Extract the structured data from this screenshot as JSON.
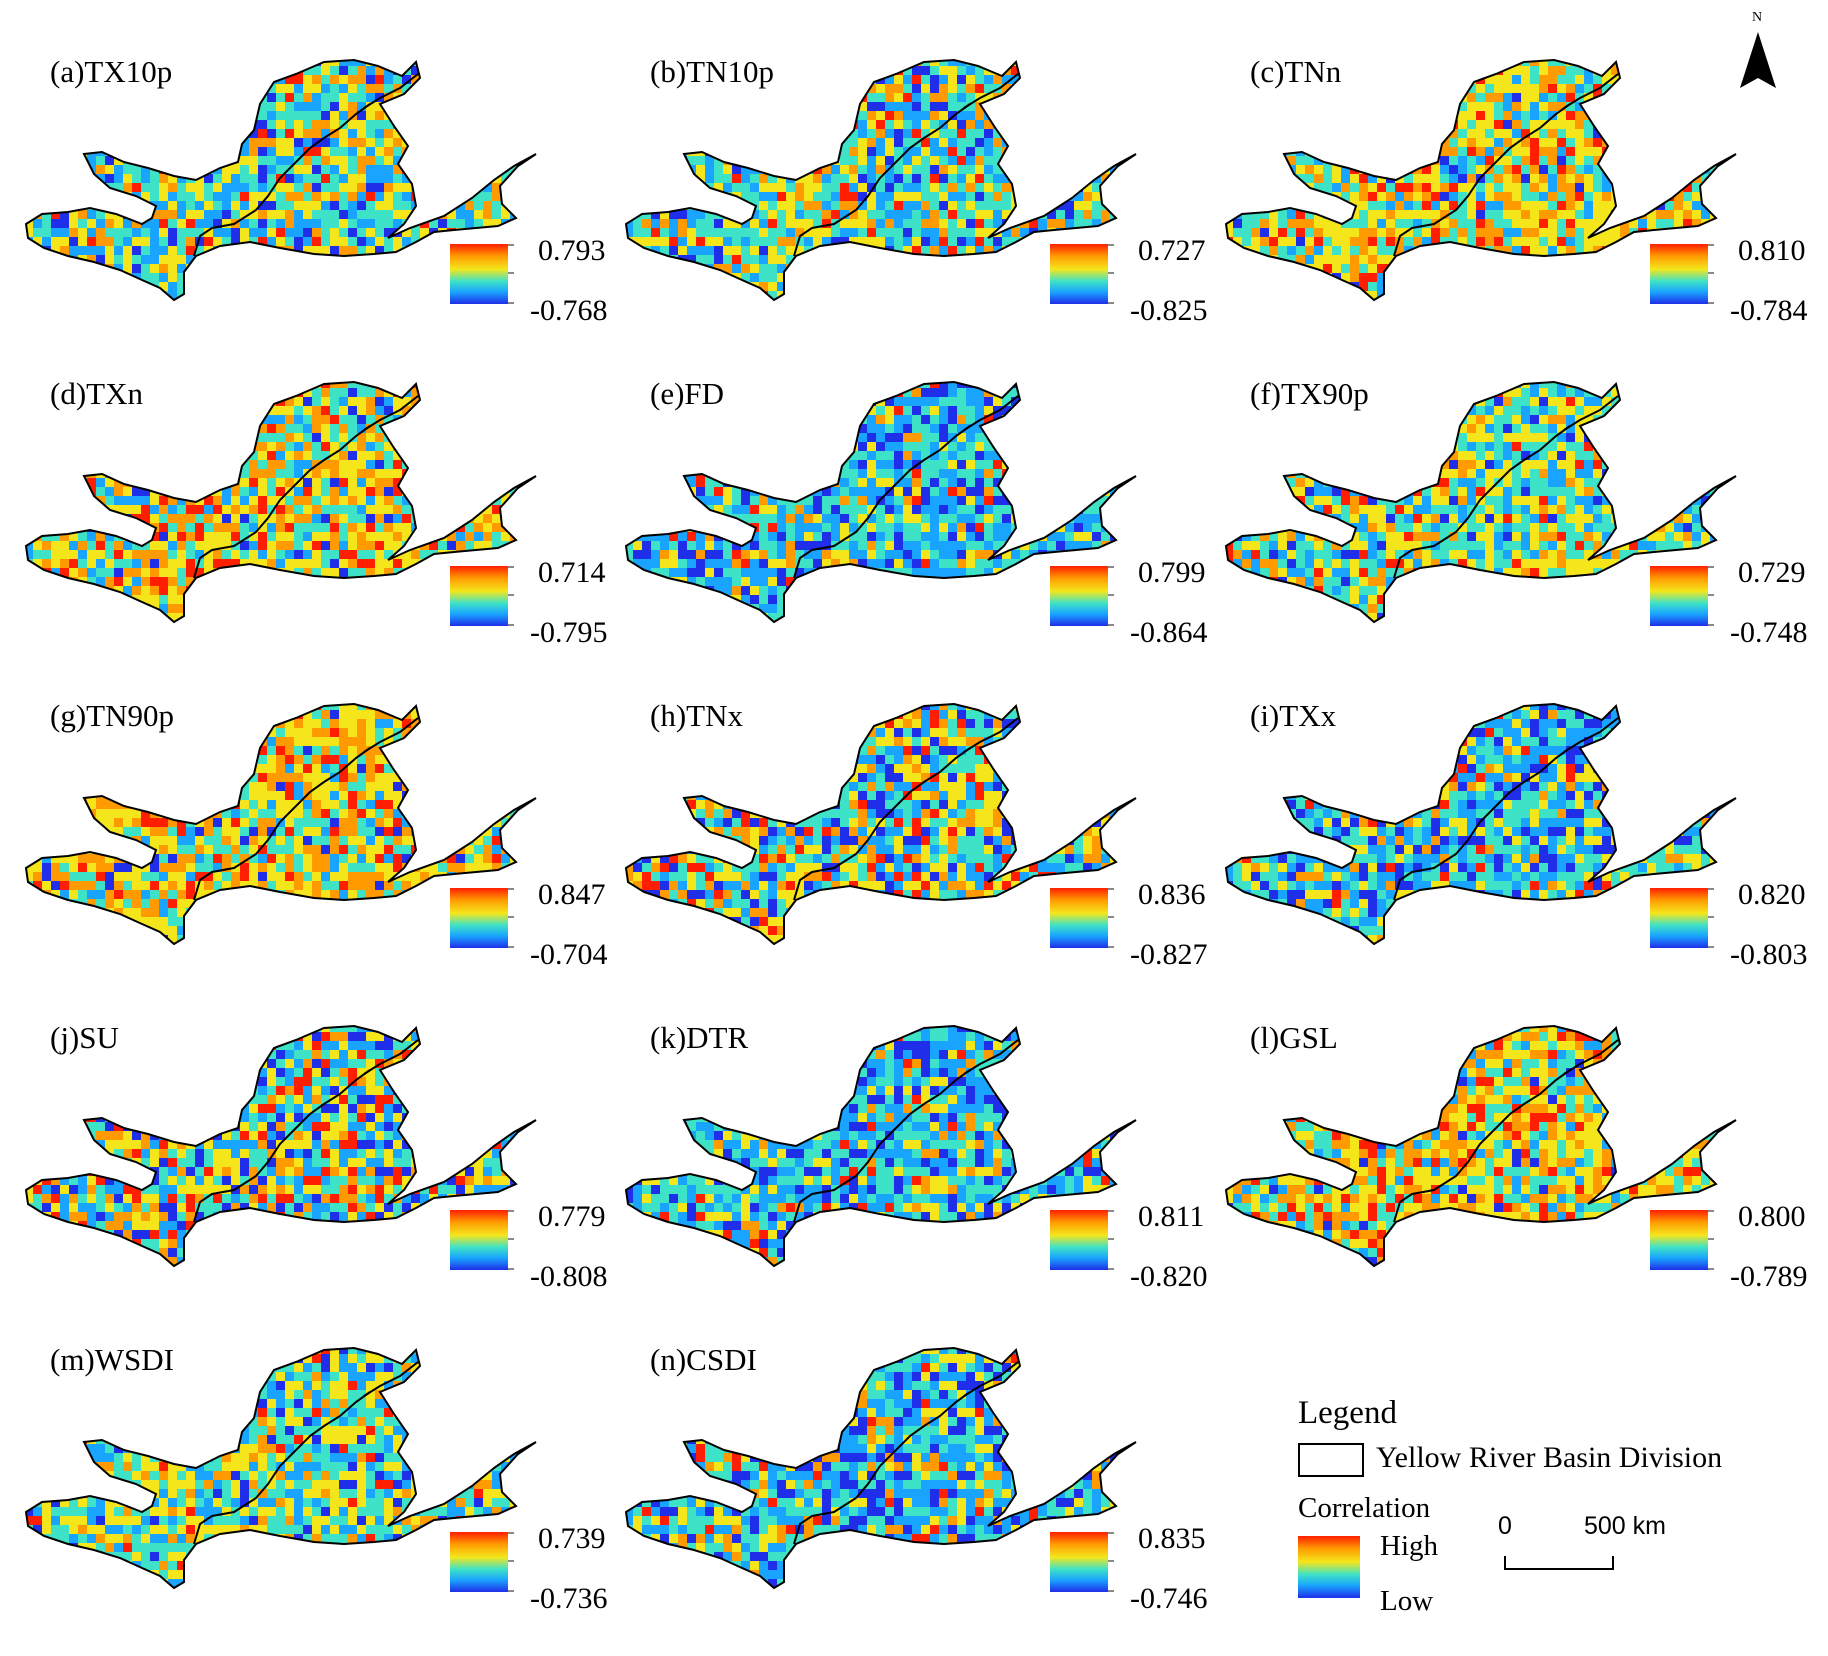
{
  "figure": {
    "panels": [
      {
        "label": "(a)TX10p",
        "max": "0.793",
        "min": "-0.768",
        "pattern": "mid-yellow-cyan",
        "notes": "blue in central-east"
      },
      {
        "label": "(b)TN10p",
        "max": "0.727",
        "min": "-0.825",
        "pattern": "cyan-yellow",
        "notes": "orange in north loop"
      },
      {
        "label": "(c)TNn",
        "max": "0.810",
        "min": "-0.784",
        "pattern": "yellow-orange",
        "notes": "blue in north"
      },
      {
        "label": "(d)TXn",
        "max": "0.714",
        "min": "-0.795",
        "pattern": "yellow-orange",
        "notes": "blue in north loop"
      },
      {
        "label": "(e)FD",
        "max": "0.799",
        "min": "-0.864",
        "pattern": "cyan-blue",
        "notes": "orange in north loop"
      },
      {
        "label": "(f)TX90p",
        "max": "0.729",
        "min": "-0.748",
        "pattern": "yellow-cyan",
        "notes": "mixed"
      },
      {
        "label": "(g)TN90p",
        "max": "0.847",
        "min": "-0.704",
        "pattern": "yellow-orange",
        "notes": "blue in north"
      },
      {
        "label": "(h)TNx",
        "max": "0.836",
        "min": "-0.827",
        "pattern": "mixed",
        "notes": "orange in west, blue in center"
      },
      {
        "label": "(i)TXx",
        "max": "0.820",
        "min": "-0.803",
        "pattern": "cyan-blue",
        "notes": "mostly blue"
      },
      {
        "label": "(j)SU",
        "max": "0.779",
        "min": "-0.808",
        "pattern": "mixed",
        "notes": "orange north, blue middle"
      },
      {
        "label": "(k)DTR",
        "max": "0.811",
        "min": "-0.820",
        "pattern": "cyan-blue",
        "notes": "orange in north loop"
      },
      {
        "label": "(l)GSL",
        "max": "0.800",
        "min": "-0.789",
        "pattern": "yellow-orange",
        "notes": "mostly warm"
      },
      {
        "label": "(m)WSDI",
        "max": "0.739",
        "min": "-0.736",
        "pattern": "yellow-cyan",
        "notes": "mixed"
      },
      {
        "label": "(n)CSDI",
        "max": "0.835",
        "min": "-0.746",
        "pattern": "cyan-blue",
        "notes": "mostly cool"
      }
    ],
    "legend": {
      "title": "Legend",
      "division_label": "Yellow River Basin Division",
      "correlation_label": "Correlation",
      "high_label": "High",
      "low_label": "Low"
    },
    "scale_bar": {
      "zero": "0",
      "distance": "500 km"
    },
    "north_arrow": {
      "letter": "N"
    },
    "colors": {
      "high": "#ff1e00",
      "mid_high": "#ff9a00",
      "mid": "#f5e61c",
      "mid_low": "#3ee2c6",
      "low_mid": "#19a4ff",
      "low": "#1f2ee8",
      "boundary": "#000000"
    }
  }
}
